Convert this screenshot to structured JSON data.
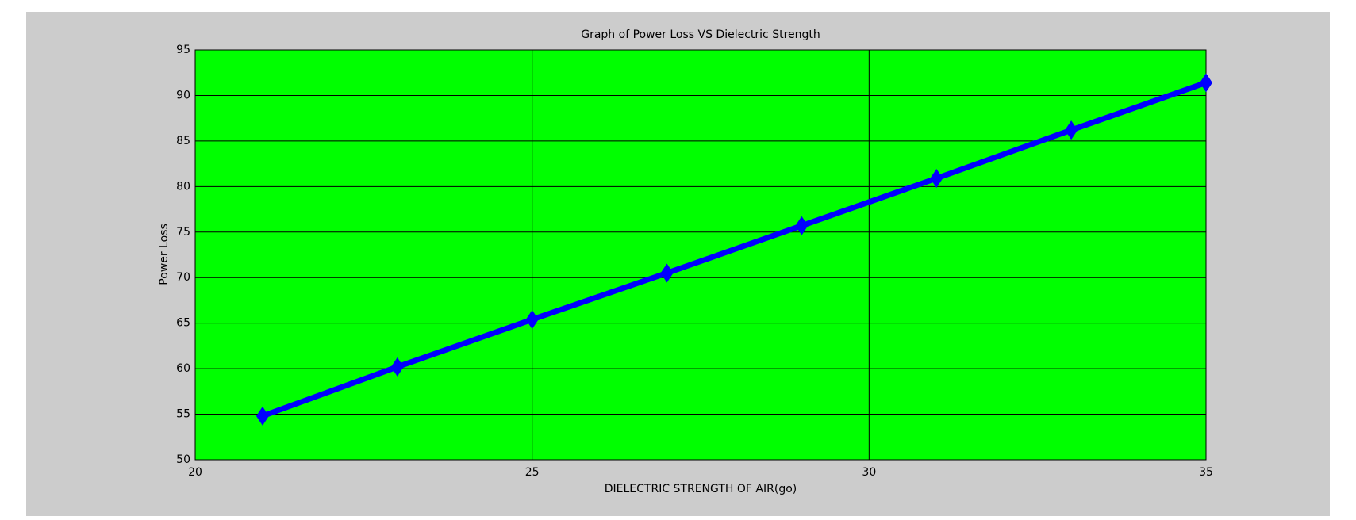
{
  "chart_data": {
    "type": "line",
    "title": "Graph of Power Loss VS Dielectric Strength",
    "x_label": "DIELECTRIC STRENGTH OF AIR(go)",
    "y_label": "Power Loss",
    "x": [
      21,
      23,
      25,
      27,
      29,
      31,
      33,
      35
    ],
    "series": [
      {
        "color": "#0000ff",
        "marker": "diamond",
        "values": [
          54.8,
          60.2,
          65.4,
          70.5,
          75.7,
          80.9,
          86.2,
          91.4
        ]
      }
    ],
    "xlim": [
      20,
      35
    ],
    "xticks": [
      20,
      25,
      30,
      35
    ],
    "ylim": [
      50,
      95
    ],
    "yticks": [
      50,
      55,
      60,
      65,
      70,
      75,
      80,
      85,
      90,
      95
    ],
    "grid": true,
    "plot_background": "#00ff00",
    "figure_background": "#cccccc"
  }
}
